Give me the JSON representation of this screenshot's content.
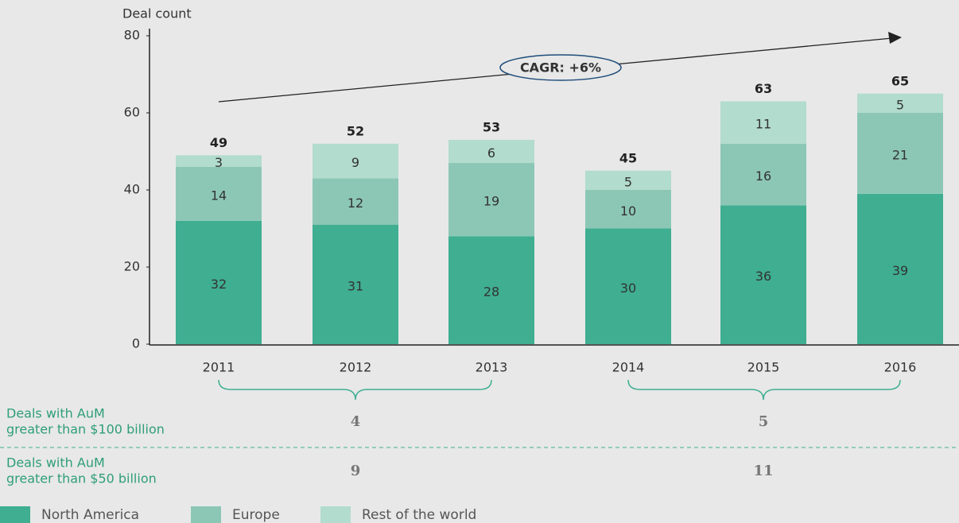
{
  "chart_data": {
    "type": "stacked_bar",
    "y_axis_label": "Deal count",
    "categories": [
      "2011",
      "2012",
      "2013",
      "2014",
      "2015",
      "2016"
    ],
    "series": [
      {
        "name": "North America",
        "color": "#3fae91",
        "values": [
          32,
          31,
          28,
          30,
          36,
          39
        ]
      },
      {
        "name": "Europe",
        "color": "#8cc7b5",
        "values": [
          14,
          12,
          19,
          10,
          16,
          21
        ]
      },
      {
        "name": "Rest of the world",
        "color": "#b2dccd",
        "values": [
          3,
          9,
          6,
          5,
          11,
          5
        ]
      }
    ],
    "totals": [
      49,
      52,
      53,
      45,
      63,
      65
    ],
    "ylim": [
      0,
      80
    ],
    "yticks": [
      0,
      20,
      40,
      60,
      80
    ],
    "annotation": "CAGR: +6%",
    "legend": "bottom-left",
    "summary_rows": [
      {
        "label": [
          "Deals with AuM",
          "greater than $100 billion"
        ],
        "values": [
          4,
          5
        ]
      },
      {
        "label": [
          "Deals with AuM",
          "greater than $50 billion"
        ],
        "values": [
          9,
          11
        ]
      }
    ]
  }
}
